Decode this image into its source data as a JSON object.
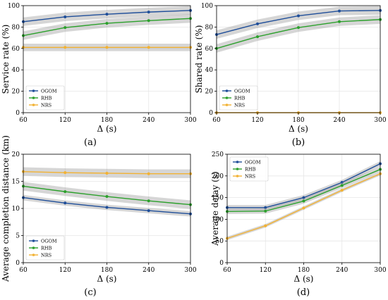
{
  "chart_data": [
    {
      "panel_label": "(a)",
      "type": "line",
      "xlabel": "Δ (s)",
      "ylabel": "Service rate (%)",
      "x": [
        60,
        120,
        180,
        240,
        300
      ],
      "xticks": [
        60,
        120,
        180,
        240,
        300
      ],
      "xlim": [
        60,
        300
      ],
      "yticks": [
        0,
        20,
        40,
        60,
        80,
        100
      ],
      "ylim": [
        0,
        100
      ],
      "grid": true,
      "legend_position": "lower-left",
      "series": [
        {
          "name": "OGOM",
          "color": "#1f4e99",
          "values": [
            85,
            89.5,
            92,
            94,
            95.5
          ],
          "band": 4
        },
        {
          "name": "RHB",
          "color": "#2ca02c",
          "values": [
            72,
            79.5,
            83.5,
            86,
            88
          ],
          "band": 4
        },
        {
          "name": "NRS",
          "color": "#f2b233",
          "values": [
            61,
            61,
            61,
            61,
            61
          ],
          "band": 3.5
        }
      ]
    },
    {
      "panel_label": "(b)",
      "type": "line",
      "xlabel": "Δ (s)",
      "ylabel": "Shared rate (%)",
      "x": [
        60,
        120,
        180,
        240,
        300
      ],
      "xticks": [
        60,
        120,
        180,
        240,
        300
      ],
      "xlim": [
        60,
        300
      ],
      "yticks": [
        0,
        20,
        40,
        60,
        80,
        100
      ],
      "ylim": [
        0,
        100
      ],
      "grid": true,
      "legend_position": "lower-left",
      "series": [
        {
          "name": "OGOM",
          "color": "#1f4e99",
          "values": [
            73,
            83,
            90.5,
            95,
            95.5
          ],
          "band": 4
        },
        {
          "name": "RHB",
          "color": "#2ca02c",
          "values": [
            60,
            71,
            79.5,
            85,
            87
          ],
          "band": 4
        },
        {
          "name": "NRS",
          "color": "#f2b233",
          "values": [
            0,
            0,
            0,
            0,
            0
          ],
          "band": 0
        }
      ]
    },
    {
      "panel_label": "(c)",
      "type": "line",
      "xlabel": "Δ (s)",
      "ylabel": "Average completion distance (km)",
      "x": [
        60,
        120,
        180,
        240,
        300
      ],
      "xticks": [
        60,
        120,
        180,
        240,
        300
      ],
      "xlim": [
        60,
        300
      ],
      "yticks": [
        0,
        5,
        10,
        15,
        20
      ],
      "ylim": [
        0,
        20
      ],
      "grid": true,
      "legend_position": "lower-left",
      "series": [
        {
          "name": "OGOM",
          "color": "#1f4e99",
          "values": [
            12,
            11,
            10.2,
            9.6,
            9
          ],
          "band": 0.5
        },
        {
          "name": "RHB",
          "color": "#2ca02c",
          "values": [
            14.1,
            13.1,
            12.2,
            11.4,
            10.7
          ],
          "band": 0.8
        },
        {
          "name": "NRS",
          "color": "#f2b233",
          "values": [
            16.8,
            16.6,
            16.5,
            16.4,
            16.4
          ],
          "band": 0.8
        }
      ]
    },
    {
      "panel_label": "(d)",
      "type": "line",
      "xlabel": "Δ (s)",
      "ylabel": "Average delay (s)",
      "x": [
        60,
        120,
        180,
        240,
        300
      ],
      "xticks": [
        60,
        120,
        180,
        240,
        300
      ],
      "xlim": [
        60,
        300
      ],
      "yticks": [
        0,
        50,
        100,
        150,
        200,
        250
      ],
      "ylim": [
        0,
        250
      ],
      "grid": true,
      "legend_position": "upper-left",
      "series": [
        {
          "name": "OGOM",
          "color": "#1f4e99",
          "values": [
            127,
            127,
            150,
            185,
            228
          ],
          "band": 6
        },
        {
          "name": "RHB",
          "color": "#2ca02c",
          "values": [
            118,
            119,
            142,
            178,
            215
          ],
          "band": 6
        },
        {
          "name": "NRS",
          "color": "#f2b233",
          "values": [
            56,
            85,
            126,
            167,
            205
          ],
          "band": 4
        }
      ]
    }
  ]
}
